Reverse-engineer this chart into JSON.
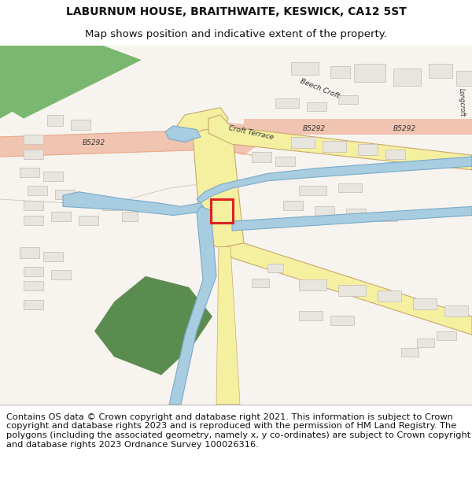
{
  "title": "LABURNUM HOUSE, BRAITHWAITE, KESWICK, CA12 5ST",
  "subtitle": "Map shows position and indicative extent of the property.",
  "footer": "Contains OS data © Crown copyright and database right 2021. This information is subject to Crown copyright and database rights 2023 and is reproduced with the permission of HM Land Registry. The polygons (including the associated geometry, namely x, y co-ordinates) are subject to Crown copyright and database rights 2023 Ordnance Survey 100026316.",
  "title_fontsize": 10,
  "subtitle_fontsize": 9.5,
  "footer_fontsize": 8.2,
  "fig_width": 6.0,
  "fig_height": 6.25,
  "map_bg": "#f7f4ef",
  "road_pink": "#f0c4b0",
  "road_pink_border": "#e8a888",
  "road_yellow": "#f5f0a0",
  "road_yellow_border": "#d4b840",
  "building_fill": "#e8e4de",
  "building_edge": "#c8c4bc",
  "green1": "#7ab870",
  "green2": "#5a8c50",
  "water": "#a8cce0",
  "water_edge": "#7aaac8",
  "white": "#ffffff",
  "text_color": "#111111",
  "road_label_color": "#333333",
  "red_box": "#dd2222",
  "divider_color": "#bbbbbb",
  "road_outline": "#c8a870"
}
